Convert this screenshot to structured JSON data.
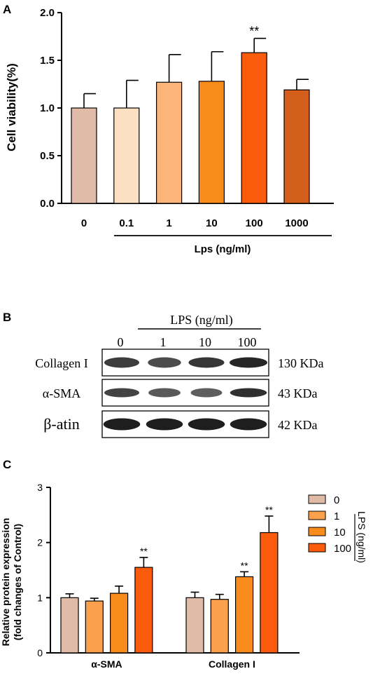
{
  "panel_a": {
    "label": "A",
    "group_label": "Lps (ng/ml)",
    "chart_data": {
      "type": "bar",
      "categories": [
        "0",
        "0.1",
        "1",
        "10",
        "100",
        "1000"
      ],
      "values": [
        1.0,
        1.0,
        1.27,
        1.28,
        1.58,
        1.19
      ],
      "errors": [
        0.15,
        0.29,
        0.29,
        0.31,
        0.15,
        0.11
      ],
      "significance": [
        "",
        "",
        "",
        "",
        "**",
        ""
      ],
      "colors": [
        "#e0bba8",
        "#fde0c2",
        "#fbb479",
        "#f98a1c",
        "#fa5b0d",
        "#d45e1b"
      ],
      "title": "",
      "xlabel": "Lps (ng/ml)",
      "ylabel": "Cell viability(%)",
      "ylim": [
        0,
        2.0
      ],
      "yticks": [
        "0.0",
        "0.5",
        "1.0",
        "1.5",
        "2.0"
      ]
    }
  },
  "panel_b": {
    "label": "B",
    "header": "LPS (ng/ml)",
    "lanes": [
      "0",
      "1",
      "10",
      "100"
    ],
    "rows": [
      {
        "protein": "Collagen I",
        "size": "130 KDa"
      },
      {
        "protein": "α-SMA",
        "size": "43 KDa"
      },
      {
        "protein": "β-atin",
        "size": "42 KDa"
      }
    ]
  },
  "panel_c": {
    "label": "C",
    "chart_data": {
      "type": "bar",
      "categories": [
        "α-SMA",
        "Collagen I"
      ],
      "series": [
        {
          "name": "0",
          "values": [
            1.0,
            1.0
          ],
          "errors": [
            0.07,
            0.1
          ],
          "significance": [
            "",
            ""
          ]
        },
        {
          "name": "1",
          "values": [
            0.94,
            0.97
          ],
          "errors": [
            0.05,
            0.09
          ],
          "significance": [
            "",
            ""
          ]
        },
        {
          "name": "10",
          "values": [
            1.08,
            1.38
          ],
          "errors": [
            0.13,
            0.09
          ],
          "significance": [
            "",
            "**"
          ]
        },
        {
          "name": "100",
          "values": [
            1.55,
            2.18
          ],
          "errors": [
            0.18,
            0.3
          ],
          "significance": [
            "**",
            "**"
          ]
        }
      ],
      "colors": [
        "#e0bba8",
        "#fba04c",
        "#f98a1c",
        "#fa5b0d"
      ],
      "title": "",
      "xlabel": "",
      "ylabel": "Relative protein expression",
      "ylabel2": "(fold changes of Control)",
      "ylim": [
        0,
        3
      ],
      "yticks": [
        "0",
        "1",
        "2",
        "3"
      ],
      "legend_position": "right",
      "legend_title": "LPS (ng/ml)"
    }
  }
}
